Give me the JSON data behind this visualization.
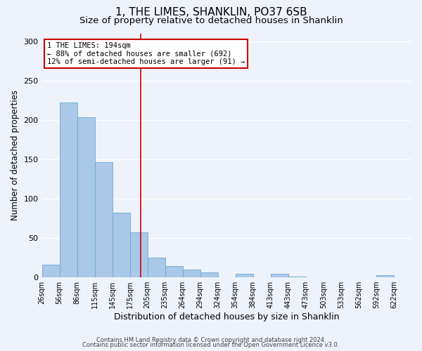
{
  "title": "1, THE LIMES, SHANKLIN, PO37 6SB",
  "subtitle": "Size of property relative to detached houses in Shanklin",
  "xlabel": "Distribution of detached houses by size in Shanklin",
  "ylabel": "Number of detached properties",
  "bin_labels": [
    "26sqm",
    "56sqm",
    "86sqm",
    "115sqm",
    "145sqm",
    "175sqm",
    "205sqm",
    "235sqm",
    "264sqm",
    "294sqm",
    "324sqm",
    "354sqm",
    "384sqm",
    "413sqm",
    "443sqm",
    "473sqm",
    "503sqm",
    "533sqm",
    "562sqm",
    "592sqm",
    "622sqm"
  ],
  "bar_heights": [
    16,
    222,
    203,
    146,
    82,
    57,
    25,
    14,
    10,
    6,
    0,
    4,
    0,
    4,
    1,
    0,
    0,
    0,
    0,
    2,
    0
  ],
  "bar_color": "#aac8e8",
  "bar_edge_color": "#6aaad4",
  "marker_bin": 5,
  "marker_label": "1 THE LIMES: 194sqm",
  "annotation_line1": "← 88% of detached houses are smaller (692)",
  "annotation_line2": "12% of semi-detached houses are larger (91) →",
  "annotation_box_color": "#ffffff",
  "annotation_box_edge": "#cc0000",
  "marker_line_color": "#cc0000",
  "ylim": [
    0,
    310
  ],
  "yticks": [
    0,
    50,
    100,
    150,
    200,
    250,
    300
  ],
  "footer1": "Contains HM Land Registry data © Crown copyright and database right 2024.",
  "footer2": "Contains public sector information licensed under the Open Government Licence v3.0.",
  "background_color": "#eef2fa",
  "grid_color": "#ffffff",
  "title_fontsize": 11,
  "subtitle_fontsize": 9.5,
  "figsize": [
    6.0,
    5.0
  ],
  "dpi": 100
}
